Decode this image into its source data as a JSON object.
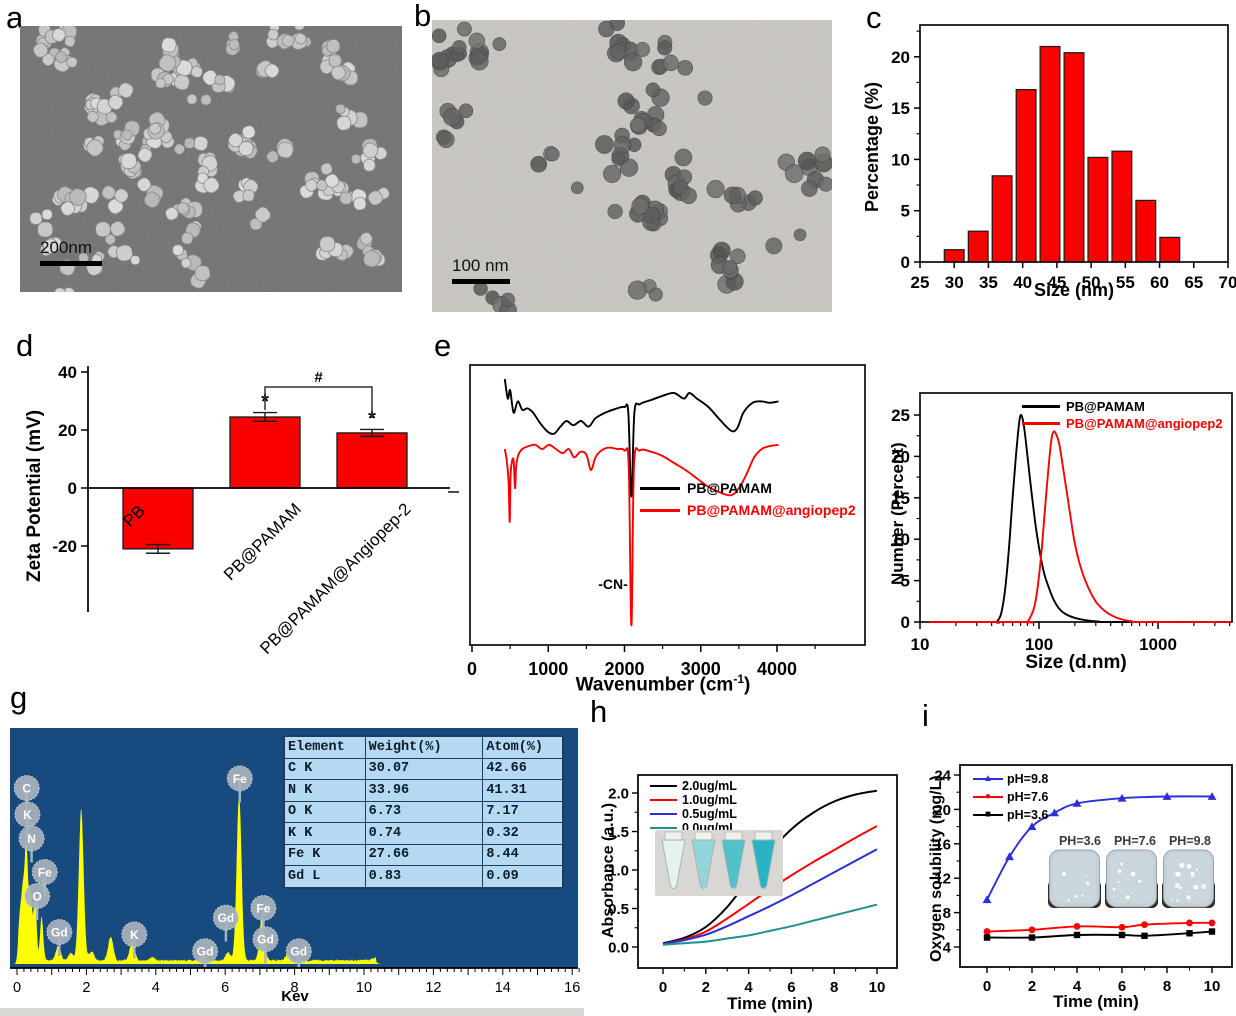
{
  "figure": {
    "panels": {
      "a": {
        "label": "a",
        "scale_bar": "200nm"
      },
      "b": {
        "label": "b",
        "scale_bar": "100 nm"
      },
      "c": {
        "label": "c"
      },
      "d": {
        "label": "d"
      },
      "e": {
        "label": "e"
      },
      "g": {
        "label": "g"
      },
      "h": {
        "label": "h"
      },
      "i": {
        "label": "i"
      }
    }
  },
  "chart_data": [
    {
      "panel": "c",
      "type": "bar",
      "xlabel": "Size (nm)",
      "ylabel": "Percentage (%)",
      "xlim": [
        25,
        70
      ],
      "ylim": [
        0,
        23.1
      ],
      "xticks": [
        25,
        30,
        35,
        40,
        45,
        50,
        55,
        60,
        65,
        70
      ],
      "yticks": [
        0,
        5,
        10,
        15,
        20
      ],
      "categories": [
        30,
        33.5,
        37,
        40.5,
        44,
        47.5,
        51,
        54.5,
        58,
        61.5
      ],
      "values": [
        1.2,
        3.0,
        8.4,
        16.8,
        21.0,
        20.4,
        10.2,
        10.8,
        6.0,
        2.4
      ],
      "bar_width": 2.9,
      "bar_color": "#fa0000"
    },
    {
      "panel": "d",
      "type": "bar",
      "ylabel": "Zeta Potential (mV)",
      "ylim": [
        -38,
        44
      ],
      "yticks": [
        -20,
        0,
        20,
        40
      ],
      "categories": [
        "PB",
        "PB@PAMAM",
        "PB@PAMAM@Angiopep-2"
      ],
      "values": [
        -21,
        24.5,
        19
      ],
      "errors": [
        1.5,
        1.5,
        1.2
      ],
      "bar_color": "#fa0000",
      "annotations": {
        "star": "*",
        "hash": "#"
      }
    },
    {
      "panel": "e",
      "type": "line",
      "xlabel_main": "Wavenumber (cm",
      "xlabel_sup": "-1",
      "xlabel_end": ")",
      "xlim": [
        0,
        5150
      ],
      "xticks": [
        0,
        1000,
        2000,
        3000,
        4000
      ],
      "annotation": "-CN-",
      "cn_dip_wavenumber": 2090,
      "series": [
        {
          "name": "PB@PAMAM",
          "color": "#000000",
          "points": [
            [
              430,
              0.05
            ],
            [
              470,
              0.12
            ],
            [
              500,
              0.09
            ],
            [
              545,
              0.17
            ],
            [
              600,
              0.13
            ],
            [
              660,
              0.16
            ],
            [
              730,
              0.155
            ],
            [
              800,
              0.17
            ],
            [
              900,
              0.21
            ],
            [
              1000,
              0.24
            ],
            [
              1080,
              0.245
            ],
            [
              1160,
              0.22
            ],
            [
              1240,
              0.2
            ],
            [
              1330,
              0.215
            ],
            [
              1430,
              0.2
            ],
            [
              1530,
              0.22
            ],
            [
              1620,
              0.19
            ],
            [
              1750,
              0.17
            ],
            [
              1900,
              0.155
            ],
            [
              2000,
              0.15
            ],
            [
              2050,
              0.17
            ],
            [
              2090,
              0.47
            ],
            [
              2130,
              0.17
            ],
            [
              2200,
              0.14
            ],
            [
              2350,
              0.125
            ],
            [
              2500,
              0.11
            ],
            [
              2650,
              0.1
            ],
            [
              2780,
              0.12
            ],
            [
              2850,
              0.1
            ],
            [
              2950,
              0.12
            ],
            [
              3100,
              0.15
            ],
            [
              3250,
              0.195
            ],
            [
              3400,
              0.235
            ],
            [
              3480,
              0.225
            ],
            [
              3560,
              0.17
            ],
            [
              3680,
              0.135
            ],
            [
              3800,
              0.13
            ],
            [
              3900,
              0.135
            ],
            [
              4020,
              0.13
            ]
          ]
        },
        {
          "name": "PB@PAMAM@angiopep2",
          "color": "#fa0000",
          "points": [
            [
              430,
              0.3
            ],
            [
              455,
              0.34
            ],
            [
              480,
              0.42
            ],
            [
              495,
              0.56
            ],
            [
              505,
              0.4
            ],
            [
              520,
              0.35
            ],
            [
              545,
              0.34
            ],
            [
              565,
              0.44
            ],
            [
              580,
              0.36
            ],
            [
              610,
              0.32
            ],
            [
              660,
              0.3
            ],
            [
              740,
              0.29
            ],
            [
              830,
              0.285
            ],
            [
              920,
              0.3
            ],
            [
              1010,
              0.285
            ],
            [
              1100,
              0.3
            ],
            [
              1190,
              0.315
            ],
            [
              1270,
              0.3
            ],
            [
              1340,
              0.33
            ],
            [
              1420,
              0.31
            ],
            [
              1500,
              0.32
            ],
            [
              1560,
              0.375
            ],
            [
              1620,
              0.33
            ],
            [
              1700,
              0.305
            ],
            [
              1800,
              0.295
            ],
            [
              1900,
              0.3
            ],
            [
              2000,
              0.305
            ],
            [
              2055,
              0.36
            ],
            [
              2090,
              0.93
            ],
            [
              2125,
              0.36
            ],
            [
              2200,
              0.305
            ],
            [
              2350,
              0.31
            ],
            [
              2500,
              0.325
            ],
            [
              2650,
              0.35
            ],
            [
              2800,
              0.375
            ],
            [
              2950,
              0.405
            ],
            [
              3100,
              0.435
            ],
            [
              3250,
              0.455
            ],
            [
              3400,
              0.465
            ],
            [
              3500,
              0.44
            ],
            [
              3600,
              0.39
            ],
            [
              3700,
              0.33
            ],
            [
              3800,
              0.3
            ],
            [
              3900,
              0.29
            ],
            [
              4020,
              0.285
            ]
          ]
        }
      ]
    },
    {
      "panel": "f",
      "type": "line",
      "xscale": "log",
      "xlabel": "Size (d.nm)",
      "ylabel": "Number (Percent)",
      "xlim": [
        10,
        4200
      ],
      "xticks": [
        10,
        100,
        1000
      ],
      "ylim": [
        0,
        27
      ],
      "yticks": [
        0,
        5,
        10,
        15,
        20,
        25
      ],
      "series": [
        {
          "name": "PB@PAMAM",
          "color": "#000000",
          "peak_nm": 70,
          "peak_percent": 25,
          "points": [
            [
              44,
              0
            ],
            [
              48,
              1
            ],
            [
              52,
              4
            ],
            [
              56,
              9
            ],
            [
              60,
              15
            ],
            [
              64,
              20
            ],
            [
              68,
              24
            ],
            [
              71,
              25
            ],
            [
              75,
              23.5
            ],
            [
              80,
              20
            ],
            [
              86,
              16
            ],
            [
              93,
              12
            ],
            [
              100,
              9
            ],
            [
              110,
              6
            ],
            [
              122,
              4
            ],
            [
              135,
              2.5
            ],
            [
              150,
              1.5
            ],
            [
              170,
              0.9
            ],
            [
              200,
              0.5
            ],
            [
              250,
              0.2
            ],
            [
              320,
              0.05
            ],
            [
              400,
              0
            ]
          ]
        },
        {
          "name": "PB@PAMAM@angiopep2",
          "color": "#fa0000",
          "peak_nm": 133,
          "peak_percent": 23,
          "points": [
            [
              80,
              0
            ],
            [
              86,
              0.8
            ],
            [
              92,
              2
            ],
            [
              98,
              4.5
            ],
            [
              105,
              8.5
            ],
            [
              112,
              13.5
            ],
            [
              120,
              18.5
            ],
            [
              127,
              22
            ],
            [
              133,
              23
            ],
            [
              140,
              22.6
            ],
            [
              148,
              21.5
            ],
            [
              158,
              19
            ],
            [
              170,
              16
            ],
            [
              185,
              12.5
            ],
            [
              200,
              9.5
            ],
            [
              220,
              7
            ],
            [
              245,
              5
            ],
            [
              275,
              3.4
            ],
            [
              310,
              2.2
            ],
            [
              360,
              1.3
            ],
            [
              420,
              0.7
            ],
            [
              500,
              0.3
            ],
            [
              600,
              0.1
            ],
            [
              700,
              0
            ]
          ]
        }
      ]
    },
    {
      "panel": "g",
      "type": "eds-spectrum",
      "xlabel": "Kev",
      "xlim": [
        0,
        16
      ],
      "xticks": [
        0,
        2,
        4,
        6,
        8,
        10,
        12,
        14,
        16
      ],
      "bg_color": "#174a7f",
      "peak_color": "#ffff00",
      "balloon_color": "#a9b3bc",
      "peaks": [
        [
          0.08,
          0.18
        ],
        [
          0.17,
          0.28
        ],
        [
          0.27,
          0.5
        ],
        [
          0.39,
          0.3
        ],
        [
          0.52,
          0.27
        ],
        [
          0.71,
          0.19
        ],
        [
          1.19,
          0.065
        ],
        [
          1.55,
          0.03
        ],
        [
          1.85,
          0.66
        ],
        [
          2.15,
          0.04
        ],
        [
          2.7,
          0.105
        ],
        [
          3.32,
          0.085
        ],
        [
          3.9,
          0.015
        ],
        [
          5.4,
          0.02
        ],
        [
          6.08,
          0.035
        ],
        [
          6.4,
          0.72
        ],
        [
          7.06,
          0.19
        ],
        [
          7.8,
          0.025
        ],
        [
          10.3,
          0.012
        ]
      ],
      "balloons": [
        {
          "text": "C",
          "kev": 0.28,
          "yf": 0.25
        },
        {
          "text": "K",
          "kev": 0.3,
          "yf": 0.36
        },
        {
          "text": "N",
          "kev": 0.42,
          "yf": 0.46
        },
        {
          "text": "Fe",
          "kev": 0.8,
          "yf": 0.6
        },
        {
          "text": "O",
          "kev": 0.58,
          "yf": 0.7
        },
        {
          "text": "Gd",
          "kev": 1.22,
          "yf": 0.85
        },
        {
          "text": "K",
          "kev": 3.38,
          "yf": 0.86
        },
        {
          "text": "Gd",
          "kev": 5.42,
          "yf": 0.93
        },
        {
          "text": "Gd",
          "kev": 6.02,
          "yf": 0.79
        },
        {
          "text": "Fe",
          "kev": 6.42,
          "yf": 0.21
        },
        {
          "text": "Fe",
          "kev": 7.1,
          "yf": 0.75
        },
        {
          "text": "Gd",
          "kev": 7.16,
          "yf": 0.88
        },
        {
          "text": "Gd",
          "kev": 8.12,
          "yf": 0.93
        }
      ],
      "table": {
        "headers": [
          "Element",
          "Weight(%)",
          "Atom(%)"
        ],
        "rows": [
          [
            "C K",
            "30.07",
            "42.66"
          ],
          [
            "N K",
            "33.96",
            "41.31"
          ],
          [
            "O K",
            "6.73",
            "7.17"
          ],
          [
            "K K",
            "0.74",
            "0.32"
          ],
          [
            "Fe K",
            "27.66",
            "8.44"
          ],
          [
            "Gd L",
            "0.83",
            "0.09"
          ]
        ]
      }
    },
    {
      "panel": "h",
      "type": "line",
      "xlabel": "Time (min)",
      "ylabel": "Absorbance (a.u.)",
      "xlim": [
        -0.9,
        11
      ],
      "xticks": [
        0,
        2,
        4,
        6,
        8,
        10
      ],
      "ylim": [
        -0.28,
        2.28
      ],
      "yticks": [
        0.0,
        0.5,
        1.0,
        1.5,
        2.0
      ],
      "x": [
        0,
        1,
        2,
        3,
        4,
        5,
        6,
        7,
        8,
        9,
        10
      ],
      "series": [
        {
          "name": "2.0ug/mL",
          "color": "#000000",
          "y": [
            0.05,
            0.12,
            0.26,
            0.52,
            0.88,
            1.24,
            1.53,
            1.74,
            1.89,
            1.98,
            2.03
          ]
        },
        {
          "name": "1.0ug/mL",
          "color": "#fa0000",
          "y": [
            0.04,
            0.1,
            0.2,
            0.37,
            0.56,
            0.75,
            0.93,
            1.1,
            1.26,
            1.42,
            1.57
          ]
        },
        {
          "name": "0.5ug/mL",
          "color": "#2a2fd8",
          "y": [
            0.04,
            0.09,
            0.16,
            0.27,
            0.4,
            0.53,
            0.67,
            0.82,
            0.97,
            1.12,
            1.27
          ]
        },
        {
          "name": "0.0ug/mL",
          "color": "#1f8f8f",
          "y": [
            0.03,
            0.05,
            0.07,
            0.11,
            0.15,
            0.21,
            0.27,
            0.34,
            0.41,
            0.48,
            0.55
          ]
        }
      ],
      "inset_tube_colors": [
        "#e4f2f0",
        "#93d6da",
        "#4ec1cb",
        "#29b3c4"
      ]
    },
    {
      "panel": "i",
      "type": "line-scatter",
      "xlabel": "Time (min)",
      "ylabel": "Oxygen solubility (mg/L)",
      "xlim": [
        -0.9,
        11
      ],
      "xticks": [
        0,
        2,
        4,
        6,
        8,
        10
      ],
      "ylim": [
        2.2,
        25.6
      ],
      "yticks": [
        4,
        8,
        12,
        16,
        20,
        24
      ],
      "series": [
        {
          "name": "pH=9.8",
          "color": "#2a2fd8",
          "marker": "triangle",
          "x": [
            0,
            1,
            2,
            3,
            4,
            6,
            8,
            10
          ],
          "y": [
            9.5,
            14.5,
            18.0,
            19.6,
            20.7,
            21.3,
            21.5,
            21.5
          ]
        },
        {
          "name": "pH=7.6",
          "color": "#fa0000",
          "marker": "circle",
          "x": [
            0,
            2,
            4,
            6,
            7,
            9,
            10
          ],
          "y": [
            5.8,
            6.0,
            6.4,
            6.3,
            6.6,
            6.8,
            6.8
          ]
        },
        {
          "name": "pH=3.6",
          "color": "#000000",
          "marker": "square",
          "x": [
            0,
            2,
            4,
            6,
            7,
            9,
            10
          ],
          "y": [
            5.1,
            5.1,
            5.4,
            5.4,
            5.3,
            5.6,
            5.8
          ]
        }
      ],
      "inset_labels": [
        "PH=3.6",
        "PH=7.6",
        "PH=9.8"
      ]
    }
  ]
}
